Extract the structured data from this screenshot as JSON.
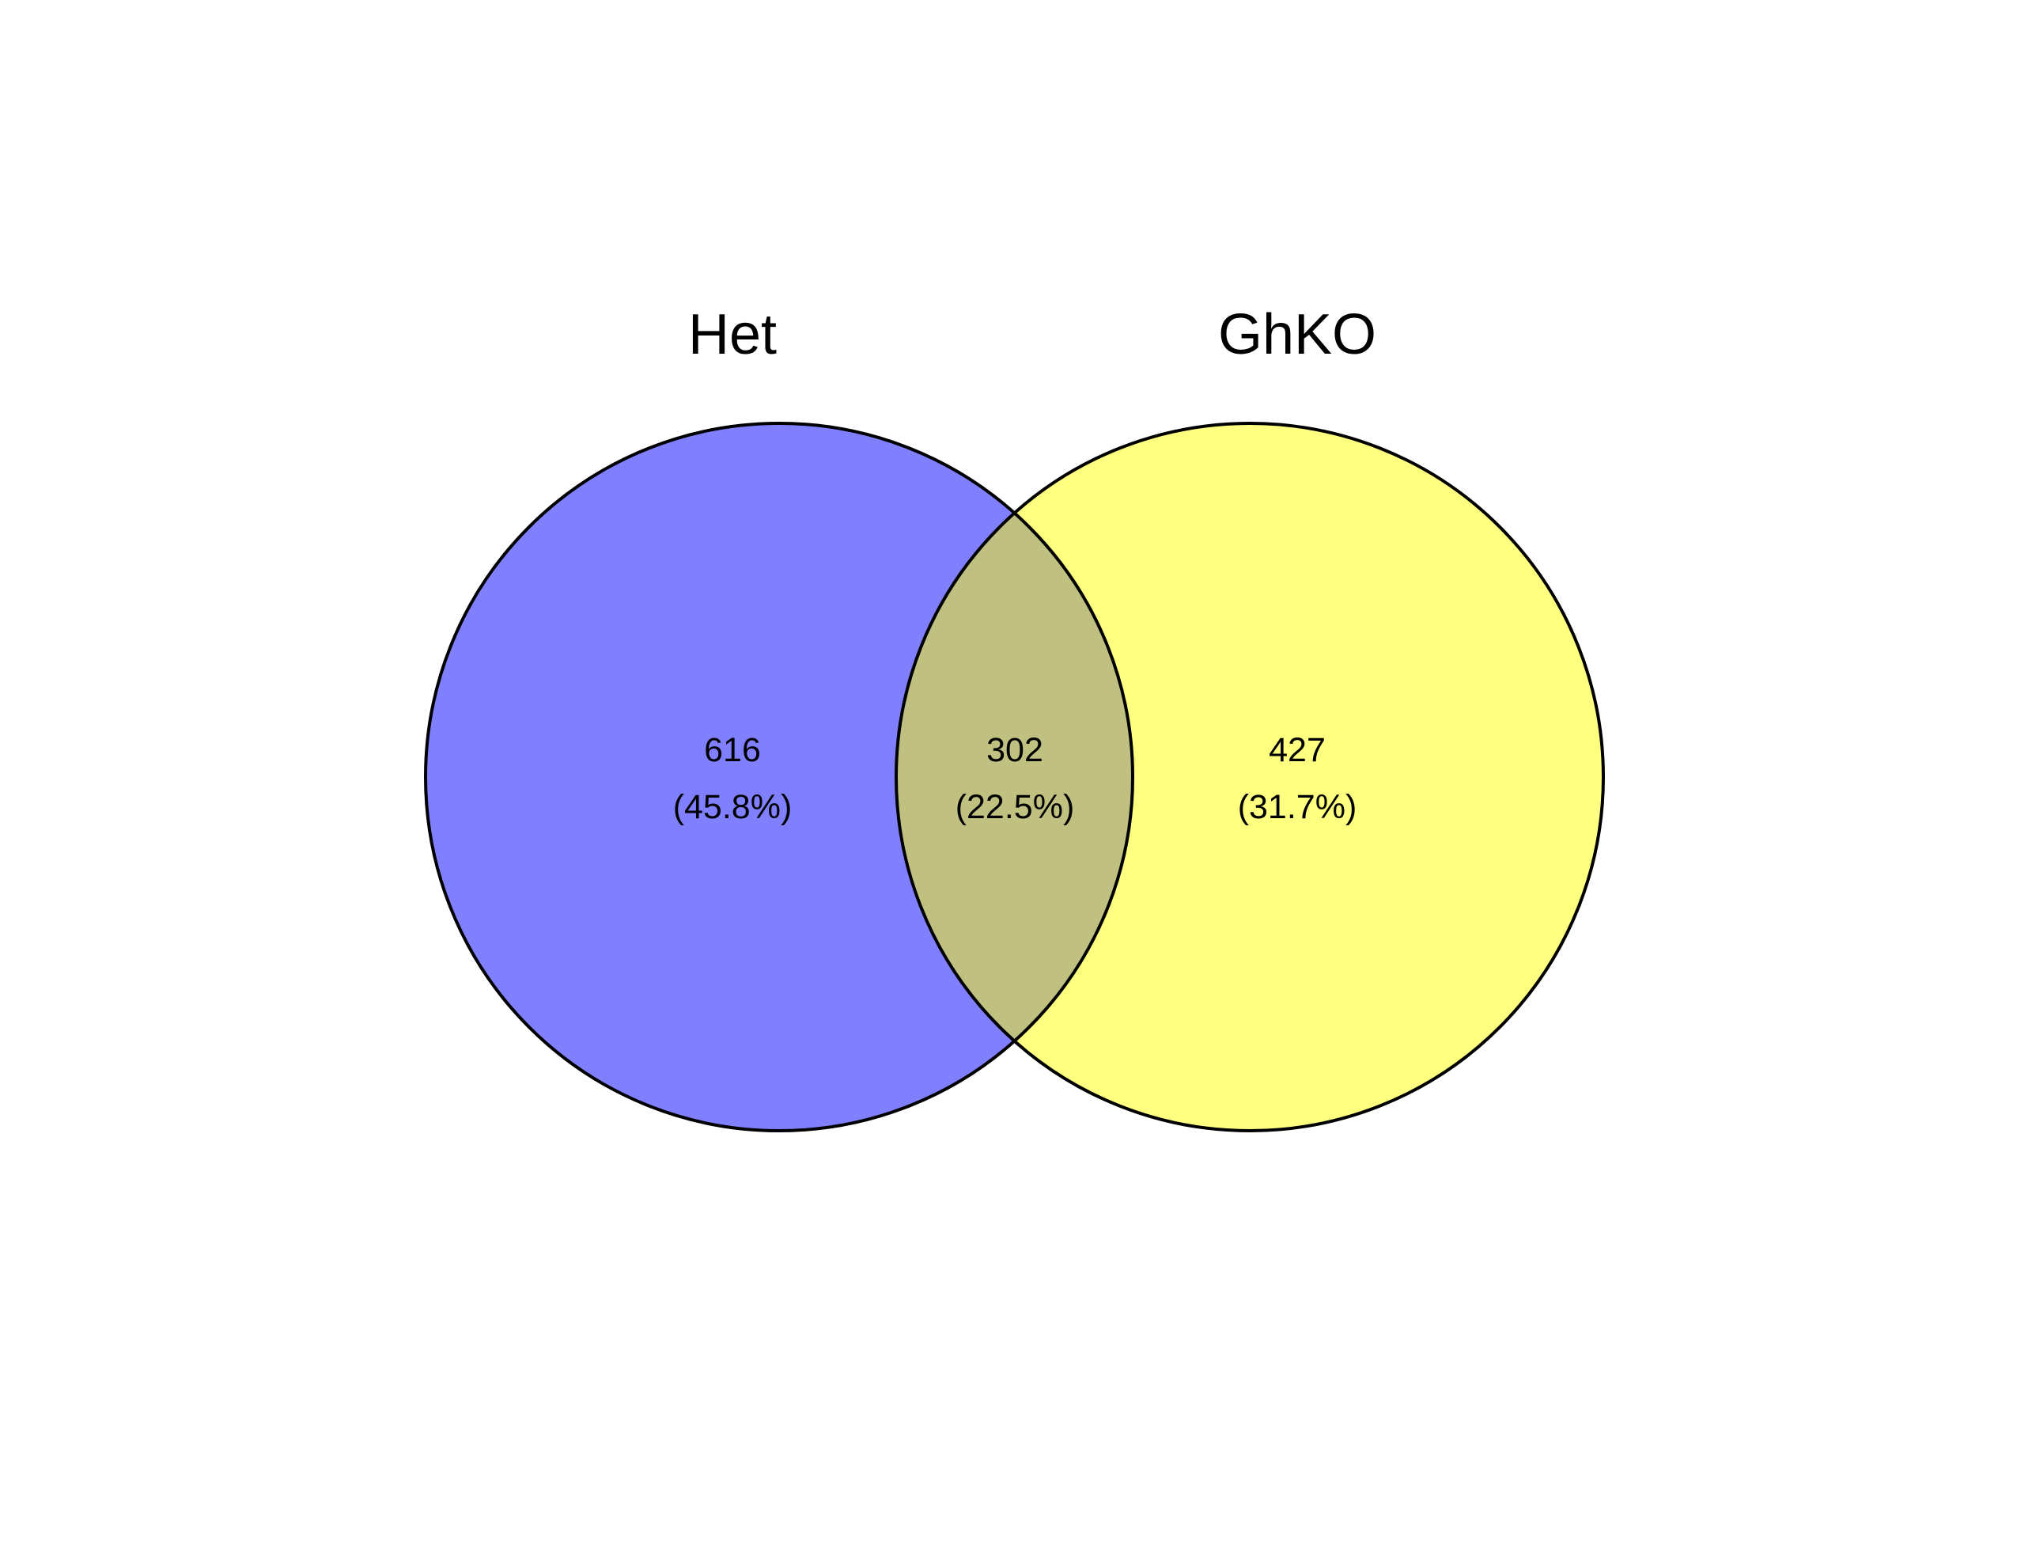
{
  "chart_data": {
    "type": "venn",
    "title": "",
    "sets": [
      {
        "name": "Het",
        "color": "#8080ff"
      },
      {
        "name": "GhKO",
        "color": "#ffff80"
      }
    ],
    "intersection_color": "#c0c080",
    "outline_color": "#000000",
    "regions": [
      {
        "id": "het-only",
        "sets": [
          "Het"
        ],
        "count": "616",
        "percent": "(45.8%)"
      },
      {
        "id": "both",
        "sets": [
          "Het",
          "GhKO"
        ],
        "count": "302",
        "percent": "(22.5%)"
      },
      {
        "id": "ghko-only",
        "sets": [
          "GhKO"
        ],
        "count": "427",
        "percent": "(31.7%)"
      }
    ]
  }
}
